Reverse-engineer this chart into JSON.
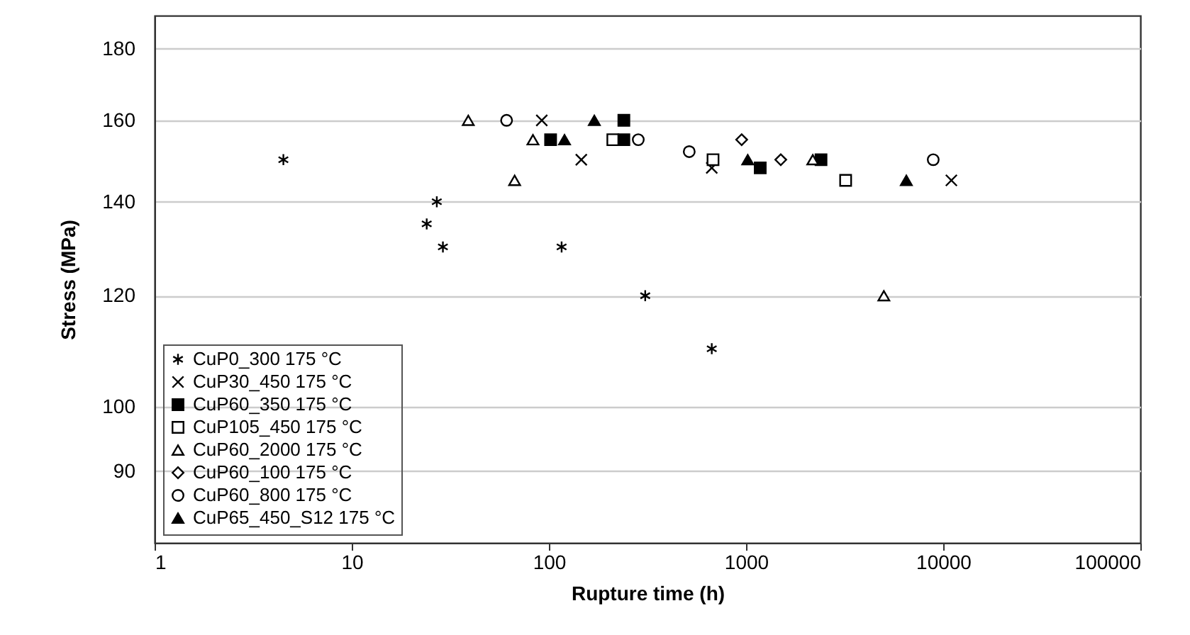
{
  "chart_data": {
    "type": "scatter",
    "xlabel": "Rupture time (h)",
    "ylabel": "Stress (MPa)",
    "log": "xy",
    "xlim": [
      1,
      100000
    ],
    "xticks": [
      1,
      10,
      100,
      1000,
      10000,
      100000
    ],
    "ylim": [
      80,
      190
    ],
    "yticks": [
      90,
      100,
      120,
      140,
      160,
      180
    ],
    "grid": "y",
    "legend": "bottom left",
    "series": [
      {
        "name": "CuP0_300 175 °C",
        "color": "#000000",
        "x": [
          4.5,
          27,
          24,
          29,
          116,
          308,
          670
        ],
        "values": [
          150,
          140,
          135,
          130,
          130,
          120,
          110
        ]
      },
      {
        "name": "CuP30_450 175 °C",
        "color": "#000000",
        "marker": "cross",
        "x": [
          92,
          146,
          670,
          11000
        ],
        "values": [
          160,
          150,
          148,
          145
        ]
      },
      {
        "name": "CuP60_350 175 °C",
        "color": "#000000",
        "marker": "square",
        "x": [
          240,
          102,
          240,
          1180,
          2400
        ],
        "values": [
          160,
          155,
          155,
          148,
          150
        ]
      },
      {
        "name": "CuP105_450 175 °C",
        "color": "#ffffff",
        "marker": "square",
        "x": [
          211,
          680,
          3200
        ],
        "values": [
          155,
          150,
          145
        ]
      },
      {
        "name": "CuP60_2000 175 °C",
        "color": "#ffffff",
        "marker": "triangle",
        "x": [
          39,
          83,
          67,
          2180,
          5000
        ],
        "values": [
          160,
          155,
          145,
          150,
          120
        ]
      },
      {
        "name": "CuP60_100 175 °C",
        "color": "#ffffff",
        "marker": "diamond",
        "x": [
          950,
          1500
        ],
        "values": [
          155,
          150
        ]
      },
      {
        "name": "CuP60_800 175 °C",
        "color": "#ffffff",
        "marker": "circle",
        "x": [
          61,
          284,
          515,
          8900
        ],
        "values": [
          160,
          155,
          152,
          150
        ]
      },
      {
        "name": "CuP65_450_S12 175 °C",
        "color": "#000000",
        "marker": "triangle",
        "x": [
          170,
          120,
          1020,
          6500
        ],
        "values": [
          160,
          155,
          150,
          145
        ]
      }
    ]
  }
}
